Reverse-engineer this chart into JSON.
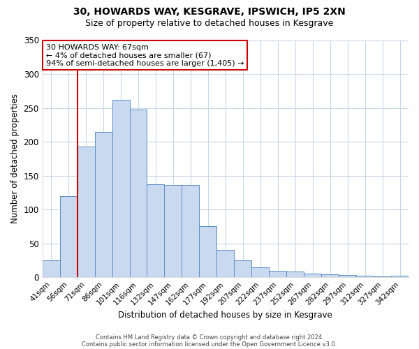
{
  "title_line1": "30, HOWARDS WAY, KESGRAVE, IPSWICH, IP5 2XN",
  "title_line2": "Size of property relative to detached houses in Kesgrave",
  "xlabel": "Distribution of detached houses by size in Kesgrave",
  "ylabel": "Number of detached properties",
  "bin_labels": [
    "41sqm",
    "56sqm",
    "71sqm",
    "86sqm",
    "101sqm",
    "116sqm",
    "132sqm",
    "147sqm",
    "162sqm",
    "177sqm",
    "192sqm",
    "207sqm",
    "222sqm",
    "237sqm",
    "252sqm",
    "267sqm",
    "282sqm",
    "297sqm",
    "312sqm",
    "327sqm",
    "342sqm"
  ],
  "bar_values": [
    25,
    120,
    193,
    215,
    262,
    248,
    137,
    136,
    136,
    75,
    40,
    25,
    15,
    9,
    8,
    5,
    4,
    3,
    2,
    1,
    2
  ],
  "bar_color": "#c9d9f0",
  "bar_edge_color": "#5b8ec4",
  "vline_color": "#cc0000",
  "vline_pos": 1.5,
  "ylim": [
    0,
    350
  ],
  "yticks": [
    0,
    50,
    100,
    150,
    200,
    250,
    300,
    350
  ],
  "annotation_text": "30 HOWARDS WAY: 67sqm\n← 4% of detached houses are smaller (67)\n94% of semi-detached houses are larger (1,405) →",
  "annotation_box_color": "#ffffff",
  "annotation_box_edge": "#cc0000",
  "footer_line1": "Contains HM Land Registry data © Crown copyright and database right 2024.",
  "footer_line2": "Contains public sector information licensed under the Open Government Licence v3.0.",
  "background_color": "#ffffff",
  "grid_color": "#c8d8e8"
}
